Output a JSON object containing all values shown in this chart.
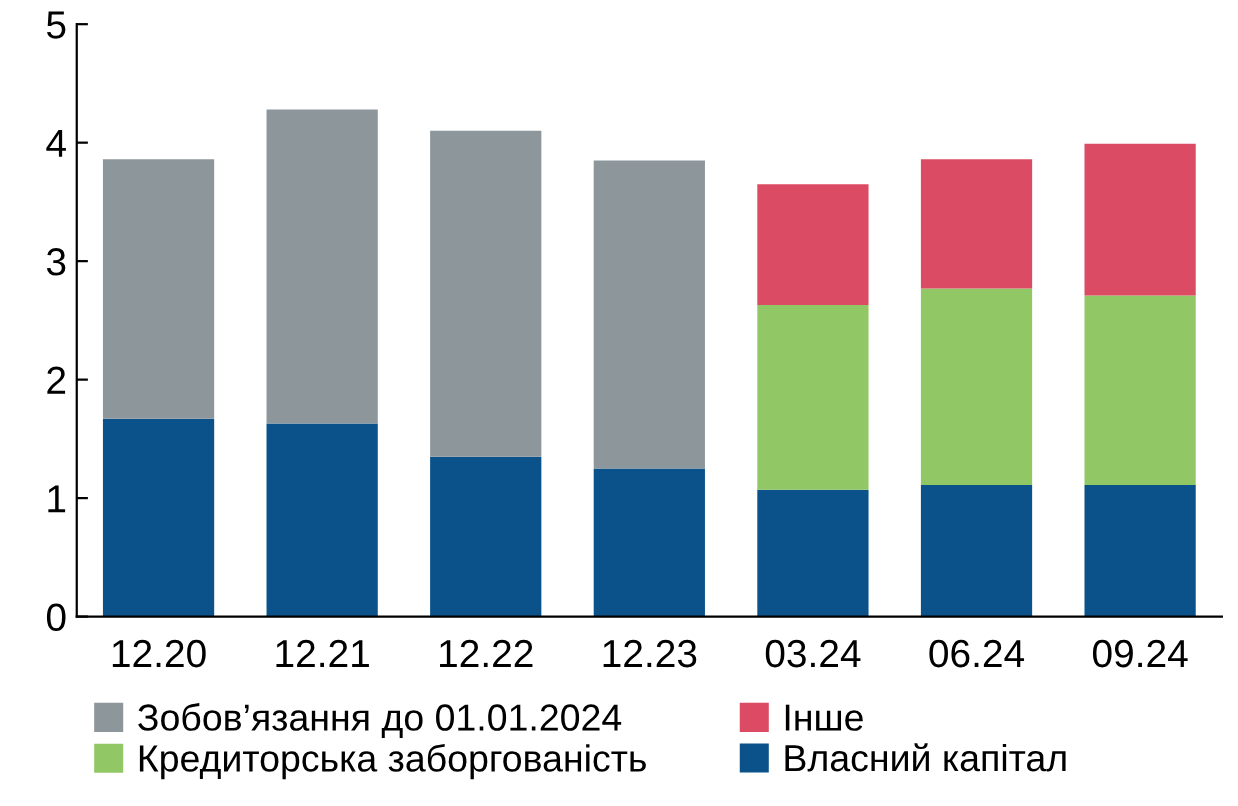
{
  "chart_data": {
    "type": "bar",
    "stacked": true,
    "categories": [
      "12.20",
      "12.21",
      "12.22",
      "12.23",
      "03.24",
      "06.24",
      "09.24"
    ],
    "series": [
      {
        "name": "Власний капітал",
        "color": "#0a5289",
        "values": [
          1.67,
          1.63,
          1.35,
          1.25,
          1.07,
          1.11,
          1.11
        ]
      },
      {
        "name": "Зобов’язання до 01.01.2024",
        "color": "#8c969b",
        "values": [
          2.19,
          2.65,
          2.75,
          2.6,
          null,
          null,
          null
        ]
      },
      {
        "name": "Кредиторська заборгованість",
        "color": "#92c765",
        "values": [
          null,
          null,
          null,
          null,
          1.56,
          1.66,
          1.6
        ]
      },
      {
        "name": "Інше",
        "color": "#dc4b64",
        "values": [
          null,
          null,
          null,
          null,
          1.02,
          1.09,
          1.28
        ]
      }
    ],
    "ylim": [
      0,
      5
    ],
    "yticks": [
      0,
      1,
      2,
      3,
      4,
      5
    ],
    "grid": false,
    "legend": "bottom"
  }
}
